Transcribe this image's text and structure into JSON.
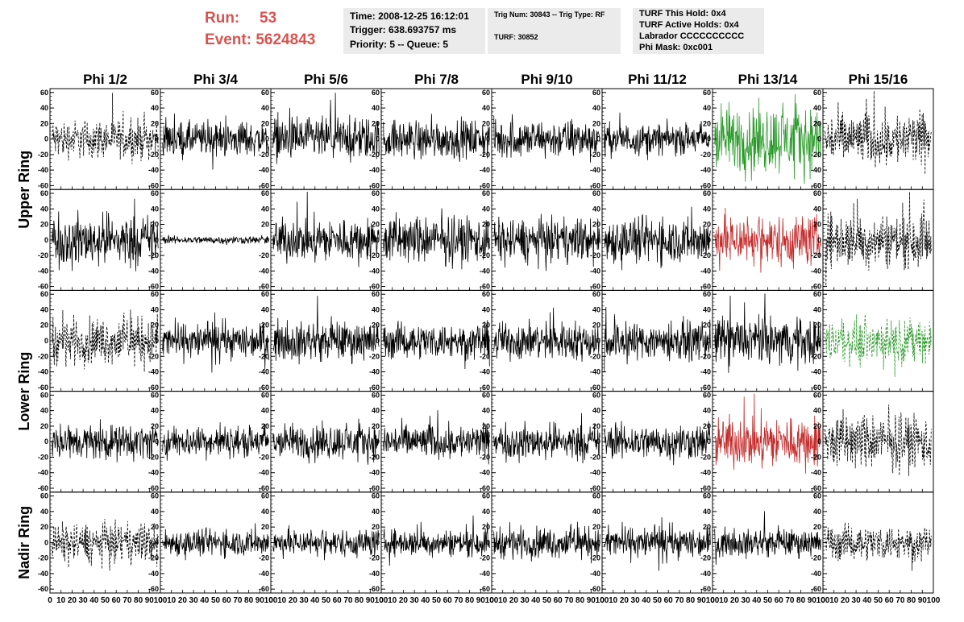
{
  "header": {
    "run_label": "Run:",
    "run_value": "53",
    "event_label": "Event:",
    "event_value": "5624843",
    "time_line": "Time: 2008-12-25 16:12:01",
    "trigger_line": "Trigger: 638.693757 ms",
    "priority_line": "Priority: 5 -- Queue: 5",
    "trig_num_line": "Trig Num: 30843 -- Trig Type: RF",
    "turf_line": "TURF: 30852",
    "turf_hold_line": "TURF This Hold: 0x4",
    "turf_active_line": "TURF Active Holds: 0x4",
    "labrador_line": "Labrador CCCCCCCCCC",
    "phi_mask_line": "Phi Mask: 0xc001"
  },
  "colors": {
    "run_text": "#d9534f",
    "box_bg": "#ebebeb",
    "trace_normal": "#000000",
    "trace_green": "#2a9a2a",
    "trace_red": "#c42a2a"
  },
  "chart_data": {
    "type": "line",
    "columns": [
      "Phi 1/2",
      "Phi 3/4",
      "Phi 5/6",
      "Phi 7/8",
      "Phi 9/10",
      "Phi 11/12",
      "Phi 13/14",
      "Phi 15/16"
    ],
    "rows": [
      "Upper Ring",
      "Lower Ring",
      "Nadir Ring"
    ],
    "xlim": [
      0,
      100
    ],
    "ylim": [
      -65,
      65
    ],
    "y_ticks": [
      60,
      40,
      20,
      0,
      -20,
      -40,
      -60
    ],
    "x_tick_labels": [
      "0",
      "10",
      "20",
      "30",
      "40",
      "50",
      "60",
      "70",
      "80",
      "90",
      "100"
    ],
    "panels": [
      [
        {
          "style": "dashed",
          "color": "normal",
          "amplitude": 20
        },
        {
          "style": "solid",
          "color": "normal",
          "amplitude": 18
        },
        {
          "style": "solid",
          "color": "normal",
          "amplitude": 22
        },
        {
          "style": "solid",
          "color": "normal",
          "amplitude": 20
        },
        {
          "style": "solid",
          "color": "normal",
          "amplitude": 20
        },
        {
          "style": "solid",
          "color": "normal",
          "amplitude": 16
        },
        {
          "style": "solid",
          "color": "green",
          "amplitude": 35
        },
        {
          "style": "dashed",
          "color": "normal",
          "amplitude": 28
        }
      ],
      [
        {
          "style": "solid",
          "color": "normal",
          "amplitude": 26
        },
        {
          "style": "solid",
          "color": "normal",
          "amplitude": 4
        },
        {
          "style": "solid",
          "color": "normal",
          "amplitude": 22
        },
        {
          "style": "solid",
          "color": "normal",
          "amplitude": 24
        },
        {
          "style": "solid",
          "color": "normal",
          "amplitude": 22
        },
        {
          "style": "solid",
          "color": "normal",
          "amplitude": 24
        },
        {
          "style": "solid",
          "color": "red",
          "amplitude": 26
        },
        {
          "style": "dashed",
          "color": "normal",
          "amplitude": 28
        }
      ],
      [
        {
          "style": "dashed",
          "color": "normal",
          "amplitude": 24
        },
        {
          "style": "solid",
          "color": "normal",
          "amplitude": 18
        },
        {
          "style": "solid",
          "color": "normal",
          "amplitude": 20
        },
        {
          "style": "solid",
          "color": "normal",
          "amplitude": 18
        },
        {
          "style": "solid",
          "color": "normal",
          "amplitude": 20
        },
        {
          "style": "solid",
          "color": "normal",
          "amplitude": 20
        },
        {
          "style": "solid",
          "color": "normal",
          "amplitude": 24
        },
        {
          "style": "dashed",
          "color": "green",
          "amplitude": 22
        }
      ],
      [
        {
          "style": "solid",
          "color": "normal",
          "amplitude": 18
        },
        {
          "style": "solid",
          "color": "normal",
          "amplitude": 16
        },
        {
          "style": "solid",
          "color": "normal",
          "amplitude": 18
        },
        {
          "style": "solid",
          "color": "normal",
          "amplitude": 18
        },
        {
          "style": "solid",
          "color": "normal",
          "amplitude": 18
        },
        {
          "style": "solid",
          "color": "normal",
          "amplitude": 18
        },
        {
          "style": "solid",
          "color": "red",
          "amplitude": 26
        },
        {
          "style": "dashed",
          "color": "normal",
          "amplitude": 28
        }
      ],
      [
        {
          "style": "dashed",
          "color": "normal",
          "amplitude": 20
        },
        {
          "style": "solid",
          "color": "normal",
          "amplitude": 14
        },
        {
          "style": "solid",
          "color": "normal",
          "amplitude": 14
        },
        {
          "style": "solid",
          "color": "normal",
          "amplitude": 14
        },
        {
          "style": "solid",
          "color": "normal",
          "amplitude": 16
        },
        {
          "style": "solid",
          "color": "normal",
          "amplitude": 16
        },
        {
          "style": "solid",
          "color": "normal",
          "amplitude": 14
        },
        {
          "style": "dashed",
          "color": "normal",
          "amplitude": 18
        }
      ]
    ]
  }
}
